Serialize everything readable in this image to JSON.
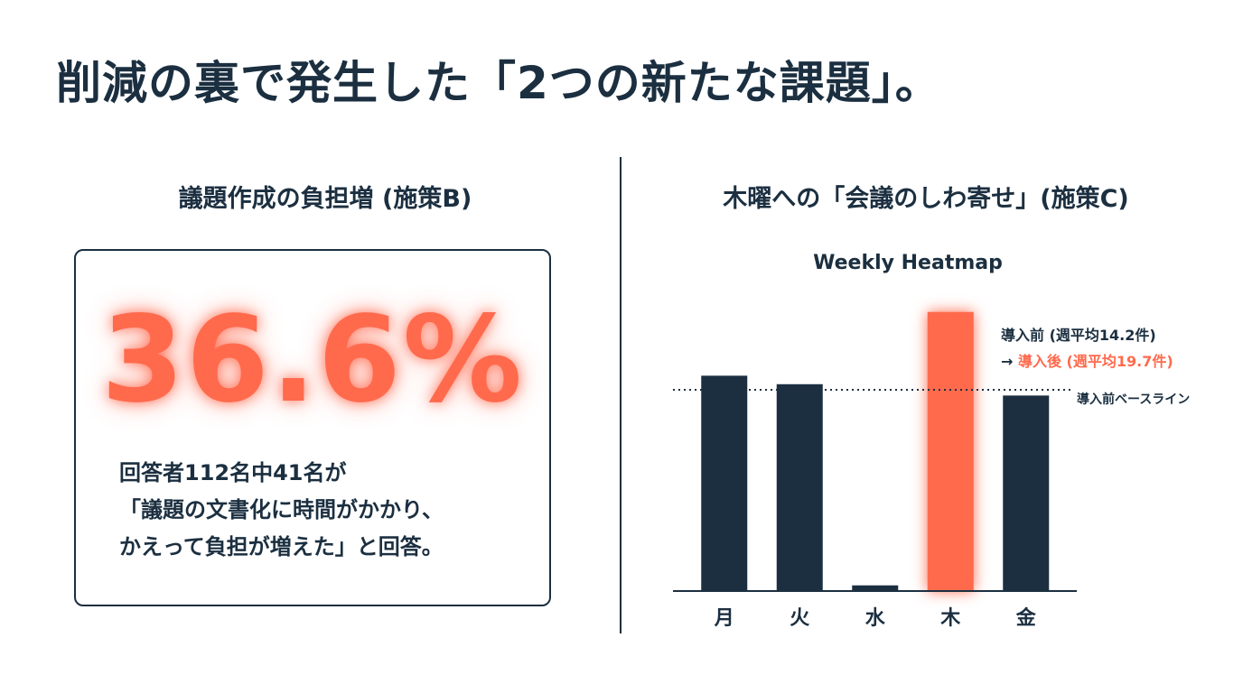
{
  "title": "削減の裏で発生した「2つの新たな課題」。",
  "left": {
    "heading": "議題作成の負担増 (施策B)",
    "stat": "36.6%",
    "description_lines": [
      "回答者112名中41名が",
      "「議題の文書化に時間がかかり、",
      "かえって負担が増えた」と回答。"
    ]
  },
  "right": {
    "heading": "木曜への「会議のしわ寄せ」(施策C)",
    "annotation_before": "導入前 (週平均14.2件)",
    "annotation_arrow": "→ ",
    "annotation_after": "導入後 (週平均19.7件)",
    "baseline_label": "導入前ベースライン"
  },
  "colors": {
    "navy": "#1b2f40",
    "accent": "#ff6a4d"
  },
  "chart_data": {
    "type": "bar",
    "title": "Weekly Heatmap",
    "categories": [
      "月",
      "火",
      "水",
      "木",
      "金"
    ],
    "values": [
      15.2,
      14.6,
      0.4,
      19.7,
      13.8
    ],
    "highlight_index": 3,
    "baseline": 14.2,
    "ylim": [
      0,
      20
    ],
    "grid": false,
    "axis_ticks_shown": false
  }
}
